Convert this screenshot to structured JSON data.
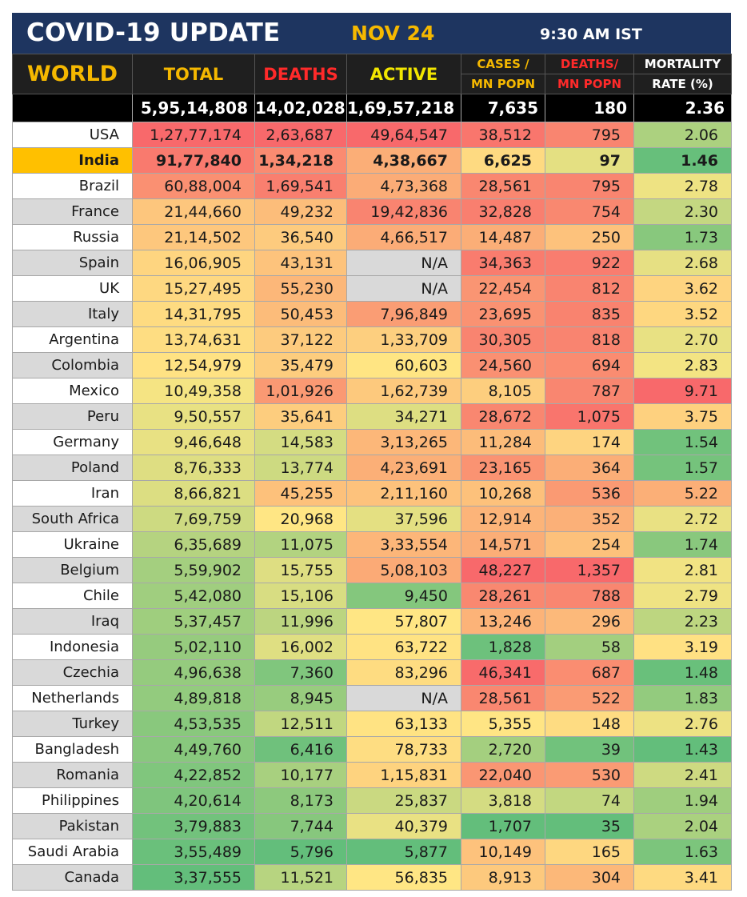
{
  "banner": {
    "title": "COVID-19 UPDATE",
    "date": "NOV 24",
    "time": "9:30 AM IST"
  },
  "headers": {
    "world": "WORLD",
    "total": "TOTAL",
    "deaths": "DEATHS",
    "active": "ACTIVE",
    "cases_line1": "CASES /",
    "cases_line2": "MN POPN",
    "deaths_line1": "DEATHS/",
    "deaths_line2": "MN POPN",
    "mort_line1": "MORTALITY",
    "mort_line2": "RATE (%)"
  },
  "world_totals": {
    "total": "5,95,14,808",
    "deaths": "14,02,028",
    "active": "1,69,57,218",
    "cases_pm": "7,635",
    "deaths_pm": "180",
    "mortality": "2.36"
  },
  "rows": [
    {
      "country": "USA",
      "total": "1,27,77,174",
      "deaths": "2,63,687",
      "active": "49,64,547",
      "cases_pm": "38,512",
      "deaths_pm": "795",
      "mortality": "2.06"
    },
    {
      "country": "India",
      "total": "91,77,840",
      "deaths": "1,34,218",
      "active": "4,38,667",
      "cases_pm": "6,625",
      "deaths_pm": "97",
      "mortality": "1.46"
    },
    {
      "country": "Brazil",
      "total": "60,88,004",
      "deaths": "1,69,541",
      "active": "4,73,368",
      "cases_pm": "28,561",
      "deaths_pm": "795",
      "mortality": "2.78"
    },
    {
      "country": "France",
      "total": "21,44,660",
      "deaths": "49,232",
      "active": "19,42,836",
      "cases_pm": "32,828",
      "deaths_pm": "754",
      "mortality": "2.30"
    },
    {
      "country": "Russia",
      "total": "21,14,502",
      "deaths": "36,540",
      "active": "4,66,517",
      "cases_pm": "14,487",
      "deaths_pm": "250",
      "mortality": "1.73"
    },
    {
      "country": "Spain",
      "total": "16,06,905",
      "deaths": "43,131",
      "active": "N/A",
      "cases_pm": "34,363",
      "deaths_pm": "922",
      "mortality": "2.68"
    },
    {
      "country": "UK",
      "total": "15,27,495",
      "deaths": "55,230",
      "active": "N/A",
      "cases_pm": "22,454",
      "deaths_pm": "812",
      "mortality": "3.62"
    },
    {
      "country": "Italy",
      "total": "14,31,795",
      "deaths": "50,453",
      "active": "7,96,849",
      "cases_pm": "23,695",
      "deaths_pm": "835",
      "mortality": "3.52"
    },
    {
      "country": "Argentina",
      "total": "13,74,631",
      "deaths": "37,122",
      "active": "1,33,709",
      "cases_pm": "30,305",
      "deaths_pm": "818",
      "mortality": "2.70"
    },
    {
      "country": "Colombia",
      "total": "12,54,979",
      "deaths": "35,479",
      "active": "60,603",
      "cases_pm": "24,560",
      "deaths_pm": "694",
      "mortality": "2.83"
    },
    {
      "country": "Mexico",
      "total": "10,49,358",
      "deaths": "1,01,926",
      "active": "1,62,739",
      "cases_pm": "8,105",
      "deaths_pm": "787",
      "mortality": "9.71"
    },
    {
      "country": "Peru",
      "total": "9,50,557",
      "deaths": "35,641",
      "active": "34,271",
      "cases_pm": "28,672",
      "deaths_pm": "1,075",
      "mortality": "3.75"
    },
    {
      "country": "Germany",
      "total": "9,46,648",
      "deaths": "14,583",
      "active": "3,13,265",
      "cases_pm": "11,284",
      "deaths_pm": "174",
      "mortality": "1.54"
    },
    {
      "country": "Poland",
      "total": "8,76,333",
      "deaths": "13,774",
      "active": "4,23,691",
      "cases_pm": "23,165",
      "deaths_pm": "364",
      "mortality": "1.57"
    },
    {
      "country": "Iran",
      "total": "8,66,821",
      "deaths": "45,255",
      "active": "2,11,160",
      "cases_pm": "10,268",
      "deaths_pm": "536",
      "mortality": "5.22"
    },
    {
      "country": "South Africa",
      "total": "7,69,759",
      "deaths": "20,968",
      "active": "37,596",
      "cases_pm": "12,914",
      "deaths_pm": "352",
      "mortality": "2.72"
    },
    {
      "country": "Ukraine",
      "total": "6,35,689",
      "deaths": "11,075",
      "active": "3,33,554",
      "cases_pm": "14,571",
      "deaths_pm": "254",
      "mortality": "1.74"
    },
    {
      "country": "Belgium",
      "total": "5,59,902",
      "deaths": "15,755",
      "active": "5,08,103",
      "cases_pm": "48,227",
      "deaths_pm": "1,357",
      "mortality": "2.81"
    },
    {
      "country": "Chile",
      "total": "5,42,080",
      "deaths": "15,106",
      "active": "9,450",
      "cases_pm": "28,261",
      "deaths_pm": "788",
      "mortality": "2.79"
    },
    {
      "country": "Iraq",
      "total": "5,37,457",
      "deaths": "11,996",
      "active": "57,807",
      "cases_pm": "13,246",
      "deaths_pm": "296",
      "mortality": "2.23"
    },
    {
      "country": "Indonesia",
      "total": "5,02,110",
      "deaths": "16,002",
      "active": "63,722",
      "cases_pm": "1,828",
      "deaths_pm": "58",
      "mortality": "3.19"
    },
    {
      "country": "Czechia",
      "total": "4,96,638",
      "deaths": "7,360",
      "active": "83,296",
      "cases_pm": "46,341",
      "deaths_pm": "687",
      "mortality": "1.48"
    },
    {
      "country": "Netherlands",
      "total": "4,89,818",
      "deaths": "8,945",
      "active": "N/A",
      "cases_pm": "28,561",
      "deaths_pm": "522",
      "mortality": "1.83"
    },
    {
      "country": "Turkey",
      "total": "4,53,535",
      "deaths": "12,511",
      "active": "63,133",
      "cases_pm": "5,355",
      "deaths_pm": "148",
      "mortality": "2.76"
    },
    {
      "country": "Bangladesh",
      "total": "4,49,760",
      "deaths": "6,416",
      "active": "78,733",
      "cases_pm": "2,720",
      "deaths_pm": "39",
      "mortality": "1.43"
    },
    {
      "country": "Romania",
      "total": "4,22,852",
      "deaths": "10,177",
      "active": "1,15,831",
      "cases_pm": "22,040",
      "deaths_pm": "530",
      "mortality": "2.41"
    },
    {
      "country": "Philippines",
      "total": "4,20,614",
      "deaths": "8,173",
      "active": "25,837",
      "cases_pm": "3,818",
      "deaths_pm": "74",
      "mortality": "1.94"
    },
    {
      "country": "Pakistan",
      "total": "3,79,883",
      "deaths": "7,744",
      "active": "40,379",
      "cases_pm": "1,707",
      "deaths_pm": "35",
      "mortality": "2.04"
    },
    {
      "country": "Saudi Arabia",
      "total": "3,55,489",
      "deaths": "5,796",
      "active": "5,877",
      "cases_pm": "10,149",
      "deaths_pm": "165",
      "mortality": "1.63"
    },
    {
      "country": "Canada",
      "total": "3,37,555",
      "deaths": "11,521",
      "active": "56,835",
      "cases_pm": "8,913",
      "deaths_pm": "304",
      "mortality": "3.41"
    }
  ],
  "colors": {
    "banner_bg": "#1e3560",
    "accent_yellow": "#f5b800",
    "accent_red": "#ff2a2a",
    "highlight_row": "#ffc000",
    "na_cell": "#d9d9d9",
    "scale_red": "#f8696b",
    "scale_orange": "#fba976",
    "scale_yellow": "#ffe784",
    "scale_green": "#63be7b"
  }
}
